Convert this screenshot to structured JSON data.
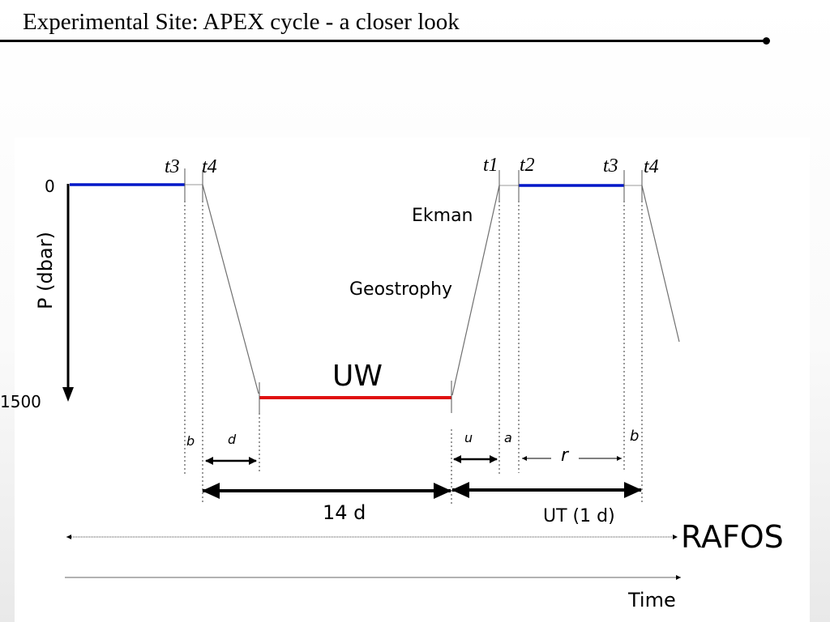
{
  "slide": {
    "title": "Experimental Site: APEX cycle - a closer look"
  },
  "diagram": {
    "axis": {
      "y_label": "P (dbar)",
      "top_value": "0",
      "bottom_value": "1500"
    },
    "time_marks": {
      "t3_first": "t3",
      "t4_first": "t4",
      "t1": "t1",
      "t2": "t2",
      "t3_second": "t3",
      "t4_second": "t4"
    },
    "phase_labels": {
      "ekman": "Ekman",
      "geostrophy": "Geostrophy",
      "underwater": "UW"
    },
    "interval_labels": {
      "b_first": "b",
      "d": "d",
      "u": "u",
      "a": "a",
      "r": "r",
      "b_second": "b"
    },
    "duration_labels": {
      "underwater_duration": "14 d",
      "surface_duration": "UT (1 d)"
    },
    "tracks": {
      "rafos": "RAFOS",
      "time": "Time"
    },
    "colors": {
      "surface_segment": "#0018c8",
      "underwater_segment": "#e01010",
      "ink": "#000000",
      "profile_line": "#707070"
    }
  }
}
